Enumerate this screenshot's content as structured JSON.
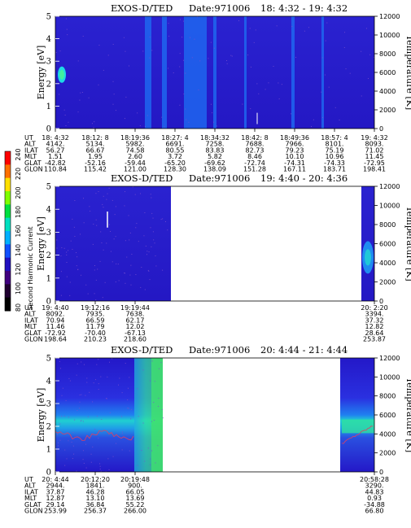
{
  "colors": {
    "spectrum_base": "#2a1ecc",
    "spectrum_band": "#1f6cf0",
    "cyan": "#20d0d8",
    "green": "#30e060",
    "white": "#ffffff"
  },
  "colorbar": {
    "label": "Second Harmonic Current",
    "ticks": [
      "240",
      "220",
      "200",
      "180",
      "160",
      "140",
      "120",
      "100",
      "80"
    ],
    "colors": [
      "#ff0000",
      "#ff7000",
      "#ffe000",
      "#80ff00",
      "#00e040",
      "#00e0c0",
      "#00b0ff",
      "#1050ff",
      "#2010c0",
      "#400080",
      "#200030",
      "#000000"
    ]
  },
  "chart_data": [
    {
      "type": "heatmap",
      "title": "EXOS-D/TED",
      "date": "Date:971006",
      "time_range": "18: 4:32 - 19: 4:32",
      "ylabel": "Energy [eV]",
      "y2label": "Temperature [K]",
      "ylim": [
        0,
        5
      ],
      "y2lim": [
        0,
        12000
      ],
      "yticks": [
        "0",
        "1",
        "2",
        "3",
        "4",
        "5"
      ],
      "y2ticks": [
        "0",
        "2000",
        "4000",
        "6000",
        "8000",
        "10000",
        "12000"
      ],
      "orbit_rows": [
        {
          "name": "UT",
          "values": [
            "18: 4:32",
            "18:12: 8",
            "18:19:36",
            "18:27: 4",
            "18:34:32",
            "18:42: 8",
            "18:49:36",
            "18:57: 4",
            "19: 4:32"
          ]
        },
        {
          "name": "ALT",
          "values": [
            "4142.",
            "5134.",
            "5982.",
            "6691.",
            "7258.",
            "7688.",
            "7966.",
            "8101.",
            "8093."
          ]
        },
        {
          "name": "ILAT",
          "values": [
            "56.27",
            "66.67",
            "74.58",
            "80.55",
            "83.83",
            "82.73",
            "79.23",
            "75.19",
            "71.02"
          ]
        },
        {
          "name": "MLT",
          "values": [
            "1.51",
            "1.95",
            "2.60",
            "3.72",
            "5.82",
            "8.46",
            "10.10",
            "10.96",
            "11.45"
          ]
        },
        {
          "name": "GLAT",
          "values": [
            "-42.82",
            "-52.16",
            "-59.44",
            "-65.20",
            "-69.62",
            "-72.74",
            "-74.31",
            "-74.33",
            "-72.95"
          ]
        },
        {
          "name": "GLON",
          "values": [
            "110.84",
            "115.42",
            "121.00",
            "128.30",
            "138.09",
            "151.28",
            "167.11",
            "183.71",
            "198.41"
          ]
        }
      ]
    },
    {
      "type": "heatmap",
      "title": "EXOS-D/TED",
      "date": "Date:971006",
      "time_range": "19: 4:40 - 20: 4:36",
      "ylabel": "Energy [eV]",
      "y2label": "Temperature [K]",
      "ylim": [
        0,
        5
      ],
      "y2lim": [
        0,
        12000
      ],
      "yticks": [
        "0",
        "1",
        "2",
        "3",
        "4",
        "5"
      ],
      "y2ticks": [
        "0",
        "2000",
        "4000",
        "6000",
        "8000",
        "10000",
        "12000"
      ],
      "orbit_rows": [
        {
          "name": "UT",
          "values": [
            "19: 4:40",
            "19:12:16",
            "19:19:44",
            "20: 2:20"
          ]
        },
        {
          "name": "ALT",
          "values": [
            "8092.",
            "7935.",
            "7638.",
            "3394."
          ]
        },
        {
          "name": "ILAT",
          "values": [
            "70.94",
            "66.59",
            "62.17",
            "37.32"
          ]
        },
        {
          "name": "MLT",
          "values": [
            "11.46",
            "11.79",
            "12.02",
            "12.82"
          ]
        },
        {
          "name": "GLAT",
          "values": [
            "-72.92",
            "-70.40",
            "-67.13",
            "28.64"
          ]
        },
        {
          "name": "GLON",
          "values": [
            "198.64",
            "210.23",
            "218.60",
            "253.87"
          ]
        }
      ]
    },
    {
      "type": "heatmap",
      "title": "EXOS-D/TED",
      "date": "Date:971006",
      "time_range": "20: 4:44 - 21: 4:44",
      "ylabel": "Energy [eV]",
      "y2label": "Temperature [K]",
      "ylim": [
        0,
        5
      ],
      "y2lim": [
        0,
        12000
      ],
      "yticks": [
        "0",
        "1",
        "2",
        "3",
        "4",
        "5"
      ],
      "y2ticks": [
        "0",
        "2000",
        "4000",
        "6000",
        "8000",
        "10000",
        "12000"
      ],
      "orbit_rows": [
        {
          "name": "UT",
          "values": [
            "20: 4:44",
            "20:12:20",
            "20:19:48",
            "20:58:28"
          ]
        },
        {
          "name": "ALT",
          "values": [
            "2944.",
            "1841.",
            "900.",
            "3290."
          ]
        },
        {
          "name": "ILAT",
          "values": [
            "37.87",
            "46.28",
            "66.05",
            "44.83"
          ]
        },
        {
          "name": "MLT",
          "values": [
            "12.87",
            "13.10",
            "13.69",
            "0.93"
          ]
        },
        {
          "name": "GLAT",
          "values": [
            "29.14",
            "36.84",
            "55.22",
            "-34.88"
          ]
        },
        {
          "name": "GLON",
          "values": [
            "253.99",
            "256.37",
            "266.00",
            "66.80"
          ]
        }
      ]
    }
  ]
}
